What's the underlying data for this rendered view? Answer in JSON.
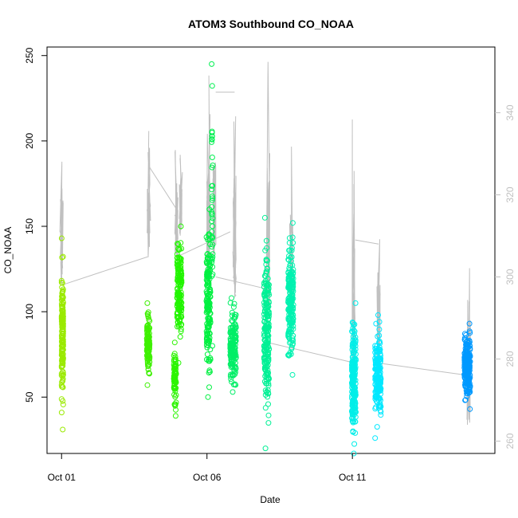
{
  "chart_data": {
    "type": "scatter",
    "title": "ATOM3 Southbound CO_NOAA",
    "xlabel": "Date",
    "ylabel": "CO_NOAA",
    "x_ticks": [
      {
        "label": "Oct 01",
        "day": 1
      },
      {
        "label": "Oct 06",
        "day": 6
      },
      {
        "label": "Oct 11",
        "day": 11
      }
    ],
    "xlim_days": [
      0.5,
      15.9
    ],
    "ylim": [
      17,
      255
    ],
    "y_ticks": [
      50,
      100,
      150,
      200,
      250
    ],
    "y2lim": [
      257,
      356
    ],
    "y2_ticks": [
      260,
      280,
      300,
      320,
      340
    ],
    "grid": false,
    "point_series_color_note": "color gradient by time",
    "point_clusters": [
      {
        "day": 1.03,
        "width": 0.06,
        "lo": 31,
        "hi": 143,
        "color": "#9aea00",
        "n": 170
      },
      {
        "day": 3.98,
        "width": 0.1,
        "lo": 57,
        "hi": 105,
        "color": "#3ef000",
        "n": 110
      },
      {
        "day": 4.9,
        "width": 0.08,
        "lo": 39,
        "hi": 82,
        "color": "#2cf400",
        "n": 70
      },
      {
        "day": 5.05,
        "width": 0.16,
        "lo": 70,
        "hi": 150,
        "color": "#22f500",
        "n": 160
      },
      {
        "day": 6.05,
        "width": 0.14,
        "lo": 50,
        "hi": 160,
        "color": "#00f040",
        "n": 170
      },
      {
        "day": 6.18,
        "width": 0.04,
        "lo": 80,
        "hi": 245,
        "color": "#00f050",
        "n": 40
      },
      {
        "day": 6.9,
        "width": 0.2,
        "lo": 53,
        "hi": 108,
        "color": "#00ee66",
        "n": 150
      },
      {
        "day": 8.05,
        "width": 0.18,
        "lo": 20,
        "hi": 155,
        "color": "#00f095",
        "n": 220
      },
      {
        "day": 8.88,
        "width": 0.18,
        "lo": 63,
        "hi": 152,
        "color": "#00f2b0",
        "n": 200
      },
      {
        "day": 11.05,
        "width": 0.14,
        "lo": 17,
        "hi": 105,
        "color": "#00eee8",
        "n": 200
      },
      {
        "day": 11.88,
        "width": 0.2,
        "lo": 26,
        "hi": 98,
        "color": "#00e8ff",
        "n": 200
      },
      {
        "day": 14.95,
        "width": 0.2,
        "lo": 43,
        "hi": 93,
        "color": "#0099ff",
        "n": 220
      }
    ],
    "line_series": {
      "color": "#c0c0c0",
      "axis": "right",
      "segments": [
        {
          "day": 1.0,
          "y2": [
            298,
            341
          ]
        },
        {
          "day": 4.0,
          "y2": [
            305,
            337
          ]
        },
        {
          "day": 4.95,
          "y2": [
            304,
            334
          ]
        },
        {
          "day": 5.1,
          "y2": [
            310,
            333
          ]
        },
        {
          "day": 6.05,
          "y2": [
            300,
            350
          ]
        },
        {
          "day": 6.25,
          "y2": [
            305,
            346
          ]
        },
        {
          "day": 6.95,
          "y2": [
            295,
            349
          ]
        },
        {
          "day": 8.1,
          "y2": [
            290,
            353
          ]
        },
        {
          "day": 8.9,
          "y2": [
            295,
            333
          ]
        },
        {
          "day": 11.05,
          "y2": [
            268,
            348
          ]
        },
        {
          "day": 11.9,
          "y2": [
            275,
            328
          ]
        },
        {
          "day": 15.0,
          "y2": [
            263,
            313
          ]
        }
      ],
      "connectors": [
        [
          [
            1.0,
            298
          ],
          [
            4.0,
            305
          ]
        ],
        [
          [
            4.0,
            327
          ],
          [
            5.0,
            316
          ]
        ],
        [
          [
            5.0,
            305
          ],
          [
            6.8,
            311
          ]
        ],
        [
          [
            6.3,
            345
          ],
          [
            6.95,
            345
          ]
        ],
        [
          [
            6.3,
            300
          ],
          [
            8.1,
            297
          ]
        ],
        [
          [
            8.1,
            284
          ],
          [
            11.1,
            279
          ]
        ],
        [
          [
            11.1,
            309
          ],
          [
            11.9,
            308
          ]
        ],
        [
          [
            11.9,
            279
          ],
          [
            15.0,
            276
          ]
        ]
      ]
    }
  }
}
